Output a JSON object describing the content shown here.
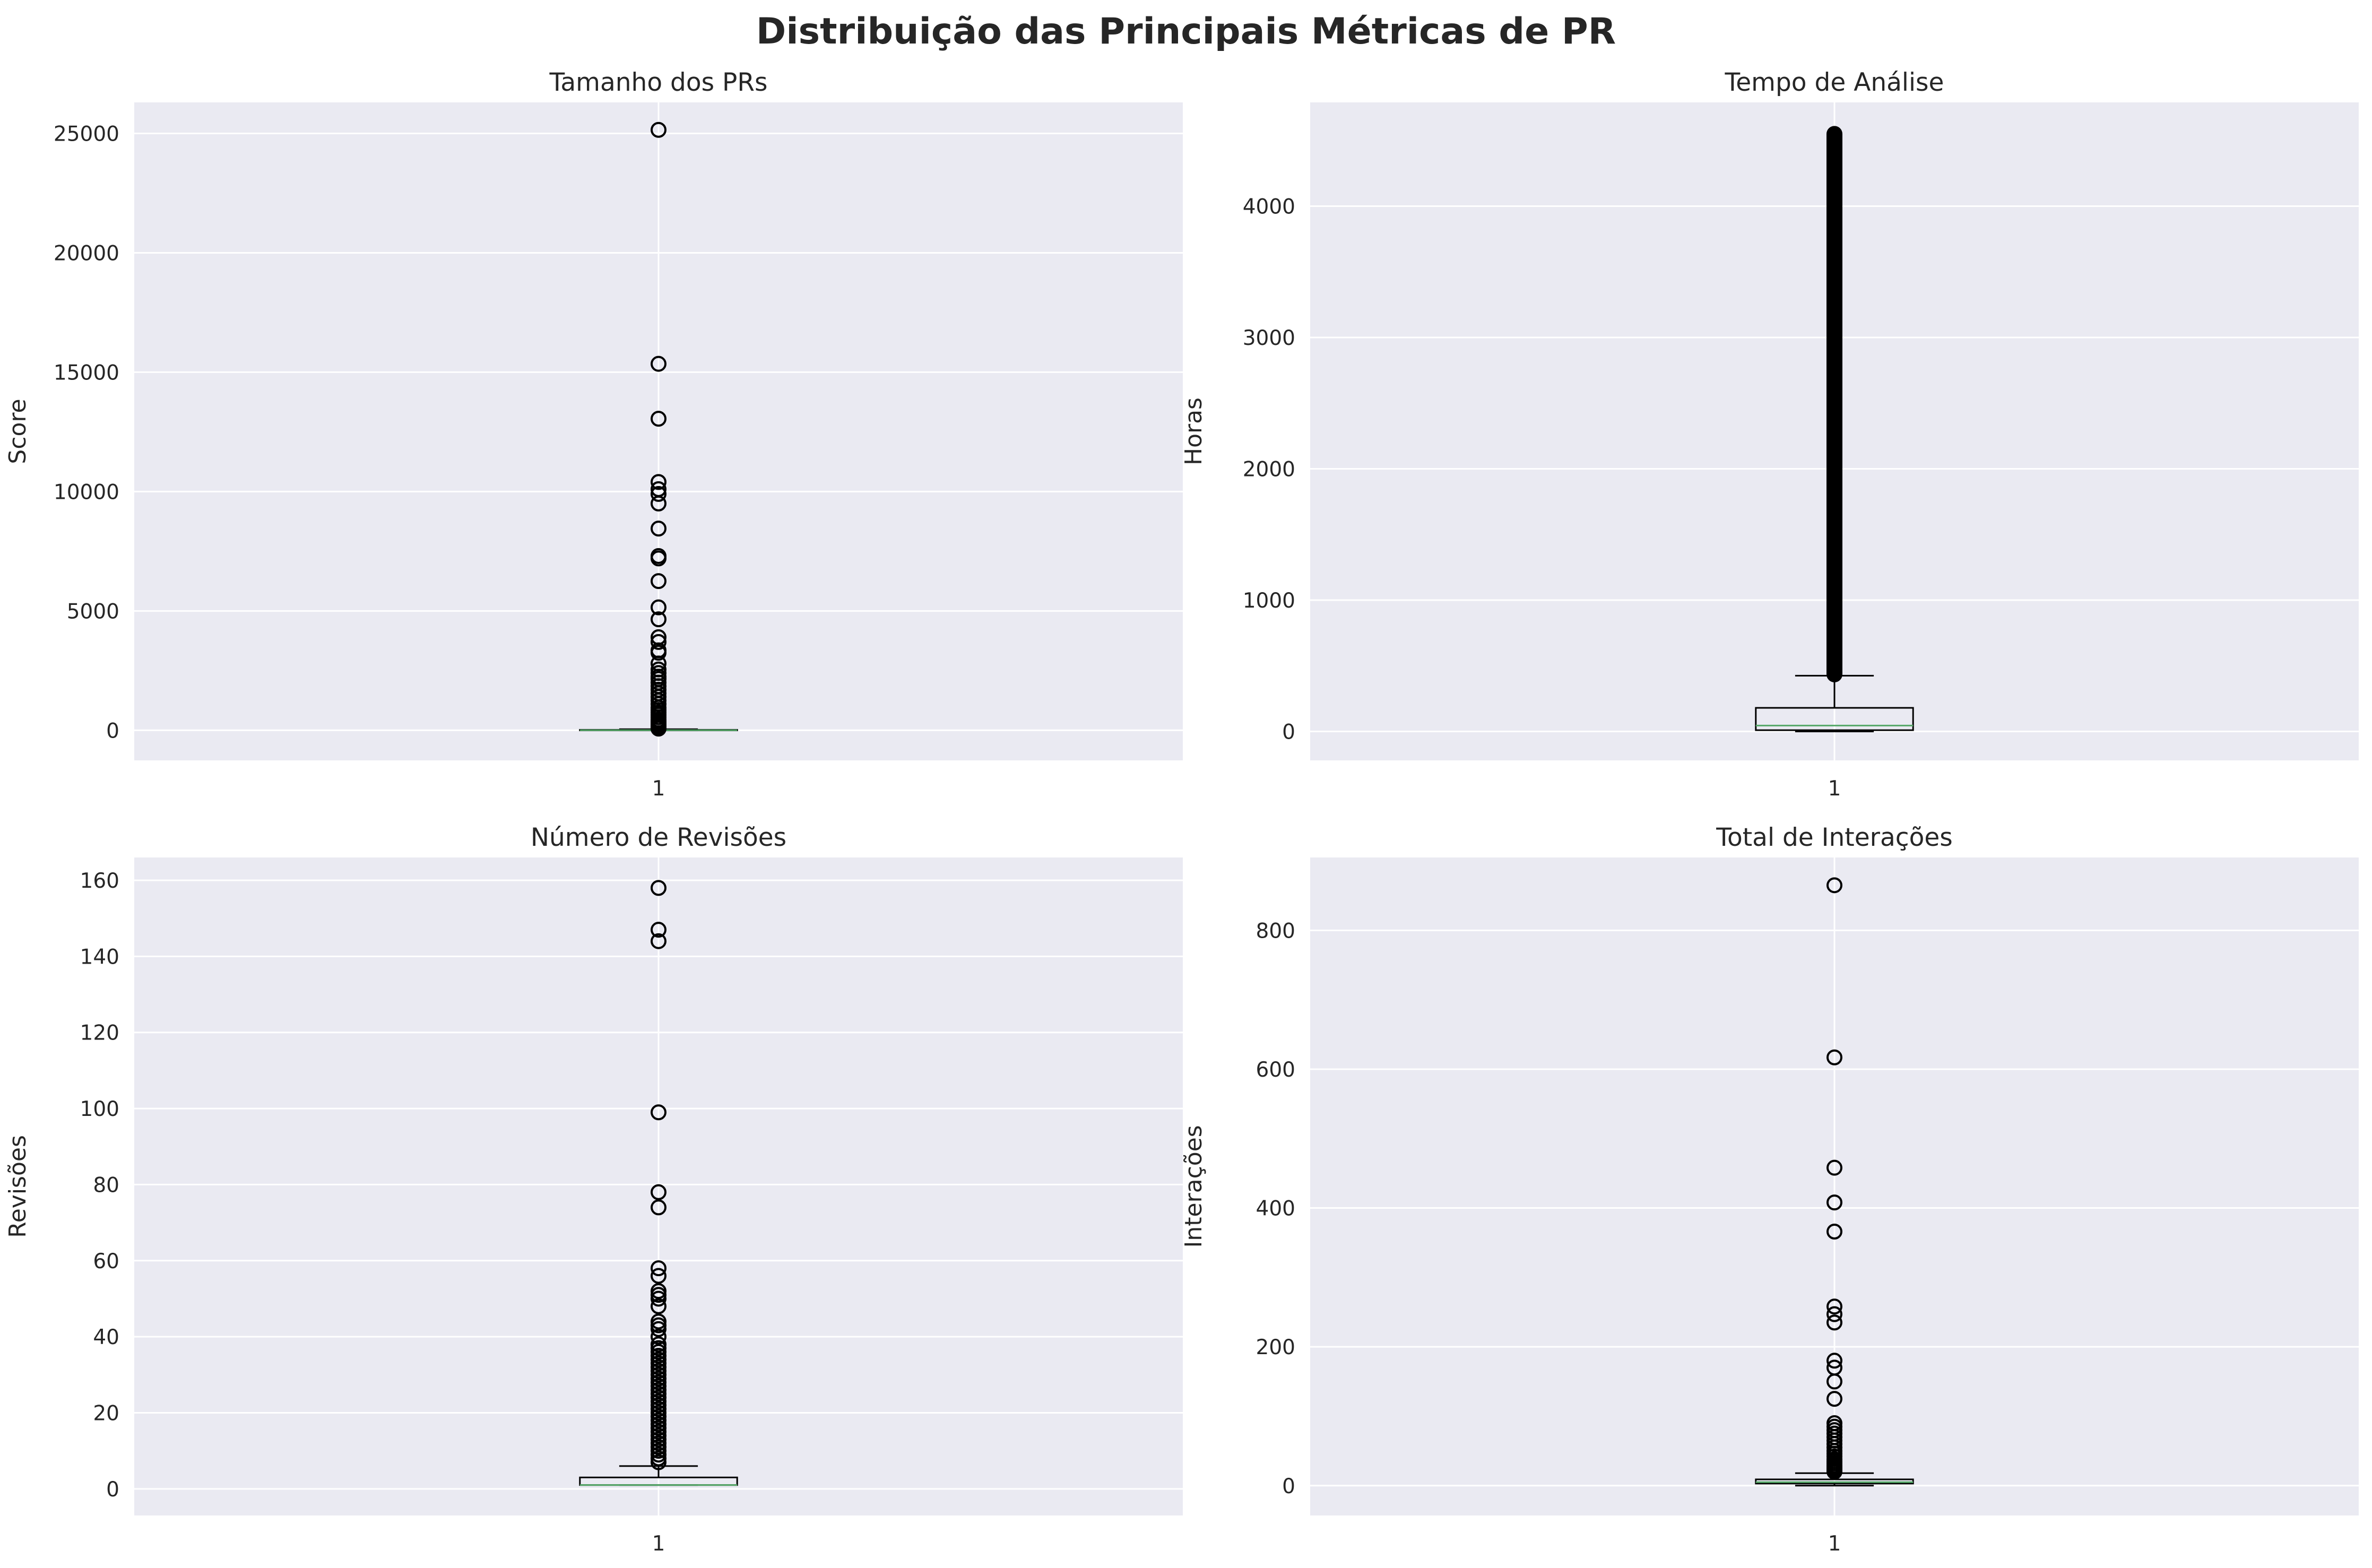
{
  "figure_title": "Distribuição das Principais Métricas de PR",
  "colors": {
    "panel_background": "#eaeaf2",
    "grid": "#ffffff",
    "box_edge": "#000000",
    "median": "#55a868",
    "flier_edge": "#000000",
    "text": "#262626"
  },
  "chart_data": [
    {
      "type": "box",
      "title": "Tamanho dos PRs",
      "ylabel": "Score",
      "xlabel": "",
      "categories": [
        "1"
      ],
      "ylim": [
        -1260,
        26300
      ],
      "yticks": [
        0,
        5000,
        10000,
        15000,
        20000,
        25000
      ],
      "grid": true,
      "box": {
        "whisker_low": 0,
        "q1": 0,
        "median": 5,
        "q3": 20,
        "whisker_high": 45
      },
      "fliers": [
        25150,
        15350,
        13050,
        10400,
        10100,
        9900,
        9500,
        8450,
        7300,
        7200,
        6250,
        5150,
        4650,
        3900,
        3700,
        3350,
        3250,
        2800,
        2550,
        2400,
        2250,
        2150,
        2000,
        1850,
        1700,
        1550,
        1400,
        1250,
        1100,
        950,
        850,
        750,
        650,
        550,
        450,
        380,
        310,
        250,
        190,
        140,
        100,
        70
      ]
    },
    {
      "type": "box",
      "title": "Tempo de Análise",
      "ylabel": "Horas",
      "xlabel": "",
      "categories": [
        "1"
      ],
      "ylim": [
        -220,
        4790
      ],
      "yticks": [
        0,
        1000,
        2000,
        3000,
        4000
      ],
      "grid": true,
      "box": {
        "whisker_low": 0,
        "q1": 10,
        "median": 45,
        "q3": 180,
        "whisker_high": 425
      },
      "flier_band": [
        435,
        4550
      ]
    },
    {
      "type": "box",
      "title": "Número de Revisões",
      "ylabel": "Revisões",
      "xlabel": "",
      "categories": [
        "1"
      ],
      "ylim": [
        -7,
        166
      ],
      "yticks": [
        0,
        20,
        40,
        60,
        80,
        100,
        120,
        140,
        160
      ],
      "grid": true,
      "box": {
        "whisker_low": 1,
        "q1": 1,
        "median": 1,
        "q3": 3,
        "whisker_high": 6
      },
      "fliers": [
        158,
        147,
        144,
        99,
        78,
        74,
        58,
        56,
        52,
        51,
        50,
        48,
        44,
        43,
        42,
        40,
        38,
        37,
        36,
        35,
        34,
        33,
        32,
        31,
        30,
        29,
        28,
        27,
        26,
        25,
        24,
        23,
        22,
        21,
        20,
        19,
        18,
        17,
        16,
        15,
        14,
        13,
        12,
        11,
        10,
        9,
        8,
        7
      ]
    },
    {
      "type": "box",
      "title": "Total de Interações",
      "ylabel": "Interações",
      "xlabel": "",
      "categories": [
        "1"
      ],
      "ylim": [
        -43,
        905
      ],
      "yticks": [
        0,
        200,
        400,
        600,
        800
      ],
      "grid": true,
      "box": {
        "whisker_low": 0,
        "q1": 3,
        "median": 5,
        "q3": 9,
        "whisker_high": 18
      },
      "fliers": [
        865,
        617,
        458,
        408,
        366,
        258,
        247,
        235,
        180,
        170,
        150,
        125,
        90,
        85,
        80,
        75,
        70,
        65,
        60,
        55,
        50,
        46,
        42,
        38,
        35,
        32,
        29,
        27,
        25,
        23,
        21,
        20
      ]
    }
  ]
}
